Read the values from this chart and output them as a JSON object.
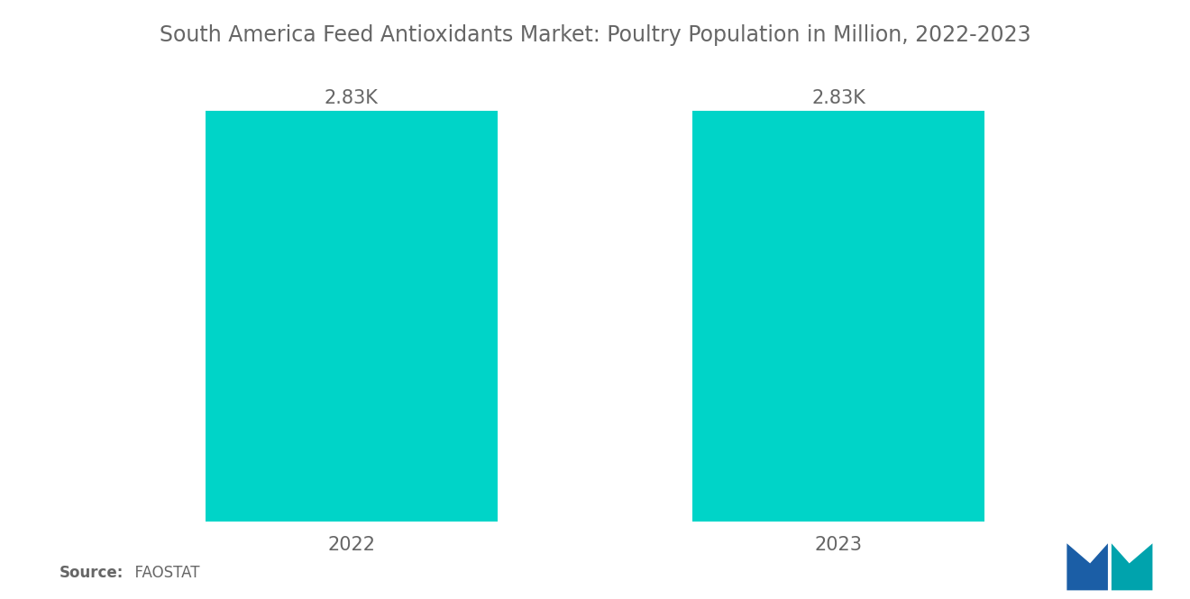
{
  "title": "South America Feed Antioxidants Market: Poultry Population in Million, 2022-2023",
  "categories": [
    "2022",
    "2023"
  ],
  "values": [
    2830,
    2830
  ],
  "bar_labels": [
    "2.83K",
    "2.83K"
  ],
  "bar_color": "#00D4C8",
  "background_color": "#ffffff",
  "title_color": "#666666",
  "label_color": "#666666",
  "source_bold": "Source:",
  "source_normal": "  FAOSTAT",
  "ylim": [
    0,
    3100
  ],
  "title_fontsize": 17,
  "label_fontsize": 15,
  "tick_fontsize": 15,
  "bar_width": 0.6,
  "xlim": [
    -0.55,
    1.55
  ]
}
